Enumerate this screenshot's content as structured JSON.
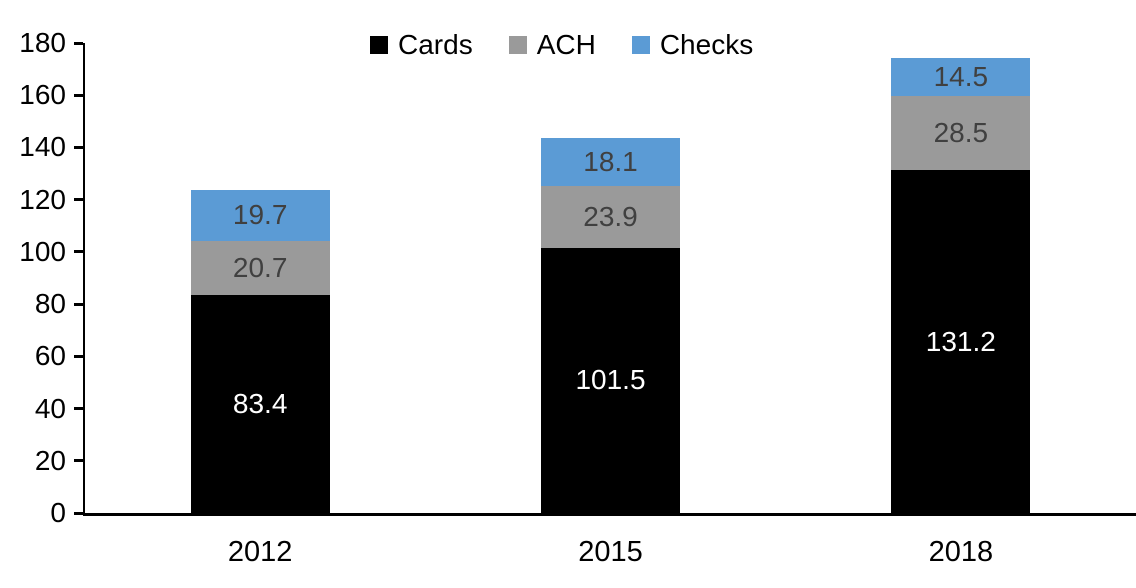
{
  "chart_data": {
    "type": "bar",
    "stacked": true,
    "title": "",
    "xlabel": "",
    "ylabel": "",
    "categories": [
      "2012",
      "2015",
      "2018"
    ],
    "series": [
      {
        "name": "Cards",
        "color": "#000000",
        "label_color": "#ffffff",
        "values": [
          83.4,
          101.5,
          131.2
        ]
      },
      {
        "name": "ACH",
        "color": "#9a9a9a",
        "label_color": "#404040",
        "values": [
          20.7,
          23.9,
          28.5
        ]
      },
      {
        "name": "Checks",
        "color": "#5b9bd5",
        "label_color": "#404040",
        "values": [
          19.7,
          18.1,
          14.5
        ]
      }
    ],
    "totals": [
      123.8,
      143.5,
      174.2
    ],
    "ylim": [
      0,
      180
    ],
    "ytick_step": 20,
    "yticks": [
      0,
      20,
      40,
      60,
      80,
      100,
      120,
      140,
      160,
      180
    ],
    "legend_position": "top",
    "grid": false,
    "axis_color": "#000000",
    "background_color": "#ffffff"
  }
}
